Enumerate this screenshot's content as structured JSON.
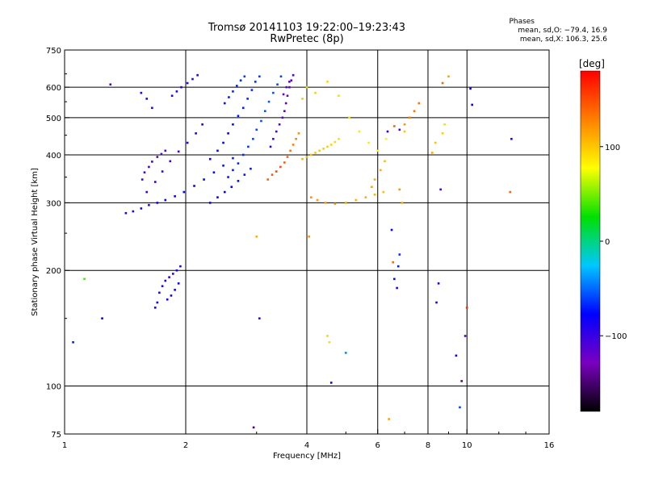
{
  "title_line1": "Tromsø 20141103 19:22:00–19:23:43",
  "title_line2": "RwPretec (8p)",
  "stats": {
    "title": "Phases",
    "o_line": "mean, sd,O: −79.4, 16.9",
    "x_line": "mean, sd,X: 106.3, 25.6"
  },
  "colors": {
    "background": "#ffffff",
    "grid": "#000000",
    "colormap": [
      "#000000",
      "#7a00c0",
      "#0000ff",
      "#00c8ff",
      "#00e000",
      "#ffff00",
      "#ff8000",
      "#ff0000"
    ]
  },
  "chart_data": {
    "type": "scatter",
    "xlabel": "Frequency [MHz]",
    "ylabel": "Stationary phase Virtual Height [km]",
    "x_scale": "log",
    "y_scale": "log",
    "xlim": [
      1,
      16
    ],
    "ylim": [
      75,
      750
    ],
    "x_ticks": [
      1,
      2,
      4,
      6,
      8,
      10,
      16
    ],
    "x_tick_labels": [
      "1",
      "2",
      "4",
      "6",
      "8",
      "10",
      "16"
    ],
    "y_ticks": [
      75,
      100,
      200,
      300,
      400,
      500,
      600,
      750
    ],
    "y_tick_labels": [
      "75",
      "100",
      "200",
      "300",
      "400",
      "500",
      "600",
      "750"
    ],
    "grid": true,
    "colorbar": {
      "label": "[deg]",
      "range": [
        -180,
        180
      ],
      "ticks": [
        -100,
        0,
        100
      ],
      "tick_labels": [
        "−100",
        "0",
        "100"
      ]
    },
    "series": [
      {
        "points": [
          [
            1.42,
            282,
            -90
          ],
          [
            1.48,
            285,
            -95
          ],
          [
            1.55,
            290,
            -92
          ],
          [
            1.62,
            296,
            -88
          ],
          [
            1.7,
            300,
            -85
          ],
          [
            1.78,
            305,
            -83
          ],
          [
            1.88,
            312,
            -82
          ],
          [
            1.98,
            320,
            -80
          ],
          [
            2.1,
            332,
            -78
          ],
          [
            2.22,
            345,
            -76
          ],
          [
            2.35,
            360,
            -74
          ],
          [
            2.48,
            375,
            -72
          ],
          [
            2.62,
            392,
            -70
          ],
          [
            1.6,
            320,
            -98
          ],
          [
            1.68,
            340,
            -100
          ],
          [
            1.75,
            362,
            -102
          ],
          [
            1.83,
            385,
            -104
          ],
          [
            1.92,
            408,
            -106
          ],
          [
            2.02,
            430,
            -96
          ],
          [
            2.12,
            455,
            -92
          ],
          [
            2.2,
            480,
            -90
          ],
          [
            1.56,
            345,
            -110
          ],
          [
            1.58,
            360,
            -112
          ],
          [
            1.62,
            372,
            -110
          ],
          [
            1.65,
            384,
            -108
          ],
          [
            1.7,
            395,
            -112
          ],
          [
            1.74,
            402,
            -114
          ],
          [
            1.78,
            410,
            -116
          ],
          [
            2.3,
            390,
            -82
          ],
          [
            2.4,
            410,
            -80
          ],
          [
            2.48,
            430,
            -78
          ],
          [
            2.55,
            455,
            -76
          ],
          [
            2.62,
            480,
            -74
          ],
          [
            2.7,
            505,
            -72
          ],
          [
            2.78,
            530,
            -70
          ],
          [
            2.85,
            560,
            -68
          ],
          [
            2.92,
            590,
            -66
          ],
          [
            2.98,
            620,
            -64
          ],
          [
            3.05,
            640,
            -62
          ],
          [
            2.55,
            350,
            -72
          ],
          [
            2.62,
            365,
            -70
          ],
          [
            2.7,
            380,
            -68
          ],
          [
            2.78,
            400,
            -66
          ],
          [
            2.86,
            420,
            -62
          ],
          [
            2.94,
            440,
            -60
          ],
          [
            3.0,
            465,
            -58
          ],
          [
            3.08,
            490,
            -56
          ],
          [
            3.15,
            520,
            -55
          ],
          [
            3.22,
            550,
            -54
          ],
          [
            3.3,
            580,
            -56
          ],
          [
            3.38,
            610,
            -58
          ],
          [
            3.45,
            640,
            -60
          ],
          [
            1.85,
            570,
            -92
          ],
          [
            1.9,
            585,
            -94
          ],
          [
            1.95,
            600,
            -96
          ],
          [
            2.02,
            615,
            -98
          ],
          [
            2.08,
            630,
            -95
          ],
          [
            2.14,
            645,
            -93
          ],
          [
            3.25,
            420,
            -100
          ],
          [
            3.3,
            440,
            -104
          ],
          [
            3.36,
            460,
            -108
          ],
          [
            3.42,
            480,
            -112
          ],
          [
            3.48,
            500,
            -114
          ],
          [
            3.52,
            520,
            -116
          ],
          [
            3.55,
            545,
            -118
          ],
          [
            3.58,
            570,
            -120
          ],
          [
            3.62,
            600,
            -116
          ],
          [
            3.66,
            625,
            -112
          ],
          [
            3.7,
            645,
            -108
          ],
          [
            3.2,
            345,
            140
          ],
          [
            3.28,
            355,
            145
          ],
          [
            3.36,
            362,
            150
          ],
          [
            3.44,
            372,
            148
          ],
          [
            3.52,
            382,
            142
          ],
          [
            3.58,
            395,
            138
          ],
          [
            3.64,
            410,
            135
          ],
          [
            3.7,
            425,
            130
          ],
          [
            3.76,
            440,
            126
          ],
          [
            3.82,
            455,
            122
          ],
          [
            3.9,
            390,
            110
          ],
          [
            4.0,
            395,
            108
          ],
          [
            4.1,
            400,
            104
          ],
          [
            4.2,
            405,
            102
          ],
          [
            4.3,
            410,
            100
          ],
          [
            4.4,
            415,
            98
          ],
          [
            4.5,
            420,
            96
          ],
          [
            4.6,
            425,
            94
          ],
          [
            4.7,
            432,
            92
          ],
          [
            4.8,
            440,
            90
          ],
          [
            4.1,
            310,
            120
          ],
          [
            4.25,
            305,
            118
          ],
          [
            4.45,
            300,
            116
          ],
          [
            4.7,
            298,
            114
          ],
          [
            5.0,
            300,
            112
          ],
          [
            5.3,
            305,
            110
          ],
          [
            5.6,
            310,
            108
          ],
          [
            5.9,
            315,
            106
          ],
          [
            6.2,
            320,
            104
          ],
          [
            3.9,
            560,
            100
          ],
          [
            4.0,
            600,
            98
          ],
          [
            4.2,
            580,
            96
          ],
          [
            4.5,
            620,
            94
          ],
          [
            4.8,
            570,
            92
          ],
          [
            5.1,
            500,
            88
          ],
          [
            5.4,
            460,
            86
          ],
          [
            5.7,
            430,
            84
          ],
          [
            6.0,
            410,
            82
          ],
          [
            6.3,
            440,
            80
          ],
          [
            1.72,
            175,
            -90
          ],
          [
            1.75,
            182,
            -92
          ],
          [
            1.78,
            188,
            -94
          ],
          [
            1.82,
            192,
            -96
          ],
          [
            1.86,
            196,
            -98
          ],
          [
            1.9,
            200,
            -95
          ],
          [
            1.94,
            205,
            -93
          ],
          [
            1.8,
            168,
            -88
          ],
          [
            1.84,
            172,
            -86
          ],
          [
            1.88,
            178,
            -84
          ],
          [
            1.92,
            185,
            -82
          ],
          [
            1.68,
            160,
            -86
          ],
          [
            1.7,
            165,
            -84
          ],
          [
            1.05,
            130,
            -70
          ],
          [
            1.12,
            190,
            40
          ],
          [
            1.24,
            150,
            -80
          ],
          [
            1.3,
            610,
            -110
          ],
          [
            1.55,
            580,
            -100
          ],
          [
            1.6,
            560,
            -98
          ],
          [
            1.65,
            530,
            -96
          ],
          [
            3.0,
            245,
            110
          ],
          [
            3.05,
            150,
            -105
          ],
          [
            2.95,
            78,
            -150
          ],
          [
            4.05,
            245,
            120
          ],
          [
            4.5,
            135,
            95
          ],
          [
            4.55,
            130,
            90
          ],
          [
            4.6,
            102,
            -90
          ],
          [
            5.0,
            122,
            -40
          ],
          [
            6.4,
            82,
            115
          ],
          [
            6.5,
            255,
            -80
          ],
          [
            6.55,
            210,
            140
          ],
          [
            6.6,
            190,
            -75
          ],
          [
            6.7,
            180,
            -85
          ],
          [
            6.75,
            205,
            -70
          ],
          [
            6.8,
            220,
            -65
          ],
          [
            6.8,
            325,
            120
          ],
          [
            6.9,
            300,
            110
          ],
          [
            7.0,
            460,
            100
          ],
          [
            8.4,
            165,
            -88
          ],
          [
            8.5,
            185,
            -90
          ],
          [
            8.6,
            325,
            -105
          ],
          [
            8.7,
            615,
            140
          ],
          [
            9.0,
            640,
            115
          ],
          [
            9.4,
            120,
            -82
          ],
          [
            9.6,
            88,
            -60
          ],
          [
            9.7,
            103,
            -140
          ],
          [
            9.9,
            135,
            -110
          ],
          [
            10.0,
            160,
            160
          ],
          [
            10.2,
            595,
            -85
          ],
          [
            10.3,
            540,
            -80
          ],
          [
            12.8,
            320,
            140
          ],
          [
            12.9,
            440,
            -90
          ],
          [
            8.2,
            405,
            110
          ],
          [
            8.35,
            430,
            102
          ],
          [
            8.7,
            455,
            96
          ],
          [
            8.8,
            480,
            92
          ],
          [
            5.8,
            330,
            115
          ],
          [
            5.9,
            345,
            110
          ],
          [
            6.1,
            365,
            108
          ],
          [
            6.25,
            385,
            104
          ],
          [
            6.35,
            460,
            -96
          ],
          [
            6.6,
            475,
            140
          ],
          [
            6.8,
            465,
            -110
          ],
          [
            7.0,
            480,
            120
          ],
          [
            7.2,
            500,
            128
          ],
          [
            7.4,
            520,
            132
          ],
          [
            7.6,
            545,
            136
          ],
          [
            3.5,
            575,
            -120
          ],
          [
            3.56,
            600,
            -118
          ],
          [
            3.62,
            620,
            -115
          ],
          [
            2.5,
            545,
            -72
          ],
          [
            2.56,
            565,
            -70
          ],
          [
            2.62,
            585,
            -68
          ],
          [
            2.68,
            605,
            -66
          ],
          [
            2.74,
            625,
            -64
          ],
          [
            2.8,
            640,
            -62
          ],
          [
            2.3,
            300,
            -82
          ],
          [
            2.4,
            310,
            -80
          ],
          [
            2.5,
            320,
            -78
          ],
          [
            2.6,
            330,
            -76
          ],
          [
            2.7,
            342,
            -74
          ],
          [
            2.8,
            355,
            -72
          ],
          [
            2.9,
            368,
            -70
          ]
        ]
      }
    ]
  }
}
